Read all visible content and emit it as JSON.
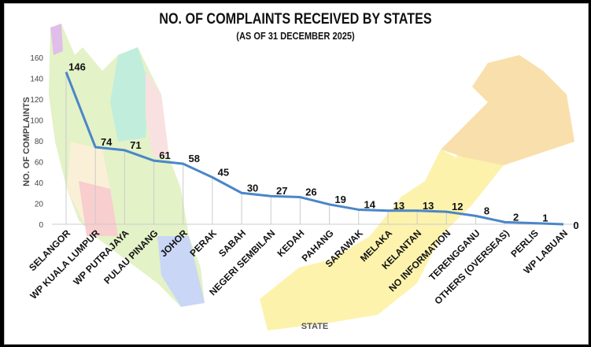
{
  "chart_data": {
    "type": "line",
    "title": "NO. OF COMPLAINTS RECEIVED BY STATES",
    "subtitle": "(AS OF 31 DECEMBER 2025)",
    "xlabel": "STATE",
    "ylabel": "NO. OF COMPLAINTS",
    "ylim": [
      0,
      160
    ],
    "yticks": [
      0,
      20,
      40,
      60,
      80,
      100,
      120,
      140,
      160
    ],
    "grid": "vertical",
    "categories": [
      "SELANGOR",
      "WP KUALA LUMPUR",
      "WP PUTRAJAYA",
      "PULAU PINANG",
      "JOHOR",
      "PERAK",
      "SABAH",
      "NEGERI SEMBILAN",
      "KEDAH",
      "PAHANG",
      "SARAWAK",
      "MELAKA",
      "KELANTAN",
      "NO INFORMATION",
      "TERENGGANU",
      "OTHERS (OVERSEAS)",
      "PERLIS",
      "WP LABUAN"
    ],
    "values": [
      146,
      74,
      71,
      61,
      58,
      45,
      30,
      27,
      26,
      19,
      14,
      13,
      13,
      12,
      8,
      2,
      1,
      0
    ],
    "line_color": "#4a86c8",
    "background": "map of Malaysia"
  }
}
